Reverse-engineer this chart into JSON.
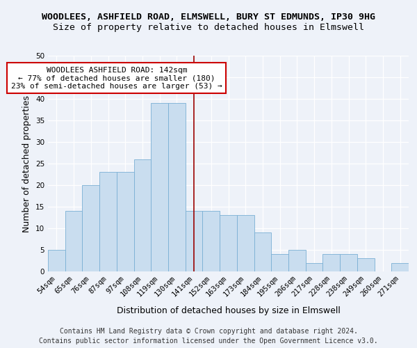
{
  "title_line1": "WOODLEES, ASHFIELD ROAD, ELMSWELL, BURY ST EDMUNDS, IP30 9HG",
  "title_line2": "Size of property relative to detached houses in Elmswell",
  "xlabel": "Distribution of detached houses by size in Elmswell",
  "ylabel": "Number of detached properties",
  "categories": [
    "54sqm",
    "65sqm",
    "76sqm",
    "87sqm",
    "97sqm",
    "108sqm",
    "119sqm",
    "130sqm",
    "141sqm",
    "152sqm",
    "163sqm",
    "173sqm",
    "184sqm",
    "195sqm",
    "206sqm",
    "217sqm",
    "228sqm",
    "238sqm",
    "249sqm",
    "260sqm",
    "271sqm"
  ],
  "values": [
    5,
    14,
    20,
    23,
    23,
    26,
    39,
    39,
    14,
    14,
    13,
    13,
    9,
    4,
    5,
    2,
    4,
    4,
    3,
    0,
    2
  ],
  "bar_color": "#c9ddef",
  "bar_edge_color": "#7aafd4",
  "vline_color": "#990000",
  "annotation_title": "WOODLEES ASHFIELD ROAD: 142sqm",
  "annotation_line2": "← 77% of detached houses are smaller (180)",
  "annotation_line3": "23% of semi-detached houses are larger (53) →",
  "annotation_box_color": "#ffffff",
  "annotation_box_edge": "#cc0000",
  "ylim": [
    0,
    50
  ],
  "yticks": [
    0,
    5,
    10,
    15,
    20,
    25,
    30,
    35,
    40,
    45,
    50
  ],
  "footer_line1": "Contains HM Land Registry data © Crown copyright and database right 2024.",
  "footer_line2": "Contains public sector information licensed under the Open Government Licence v3.0.",
  "bg_color": "#eef2f9",
  "grid_color": "#ffffff",
  "title_fontsize": 9.5,
  "subtitle_fontsize": 9.5,
  "ylabel_fontsize": 9,
  "xlabel_fontsize": 9,
  "tick_fontsize": 7.5,
  "annotation_fontsize": 8,
  "footer_fontsize": 7
}
